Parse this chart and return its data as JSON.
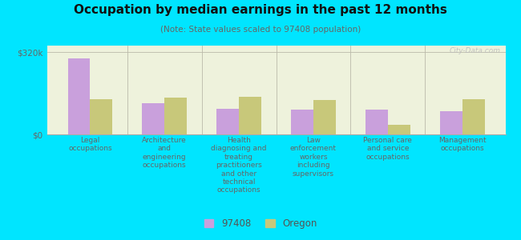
{
  "title": "Occupation by median earnings in the past 12 months",
  "subtitle": "(Note: State values scaled to 97408 population)",
  "background_outer": "#00e5ff",
  "background_inner_top": "#e8eed8",
  "background_inner_bottom": "#f5f8e8",
  "categories": [
    "Legal\noccupations",
    "Architecture\nand\nengineering\noccupations",
    "Health\ndiagnosing and\ntreating\npractitioners\nand other\ntechnical\noccupations",
    "Law\nenforcement\nworkers\nincluding\nsupervisors",
    "Personal care\nand service\noccupations",
    "Management\noccupations"
  ],
  "values_97408": [
    295000,
    120000,
    100000,
    97000,
    95000,
    90000
  ],
  "values_oregon": [
    138000,
    143000,
    145000,
    133000,
    38000,
    138000
  ],
  "color_97408": "#c9a0dc",
  "color_oregon": "#c8c87a",
  "yticks": [
    0,
    320000
  ],
  "ytick_labels": [
    "$0",
    "$320k"
  ],
  "legend_97408": "97408",
  "legend_oregon": "Oregon",
  "ylim": [
    0,
    345000
  ],
  "watermark": "City-Data.com"
}
